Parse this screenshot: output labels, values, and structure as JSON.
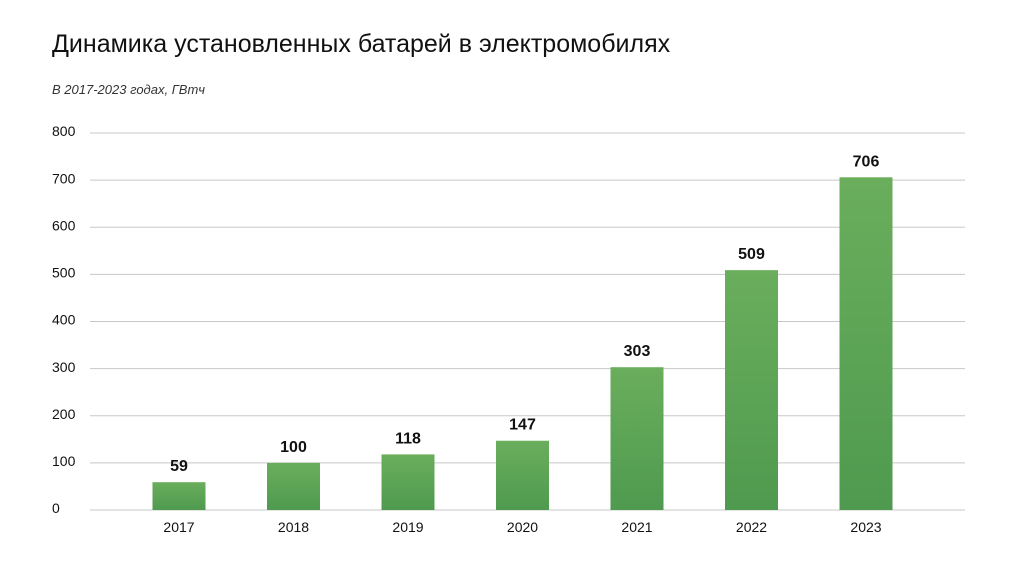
{
  "chart_data": {
    "type": "bar",
    "title": "Динамика установленных батарей в электромобилях",
    "subtitle": "В 2017-2023 годах, ГВтч",
    "categories": [
      "2017",
      "2018",
      "2019",
      "2020",
      "2021",
      "2022",
      "2023"
    ],
    "values": [
      59,
      100,
      118,
      147,
      303,
      509,
      706
    ],
    "ylim": [
      0,
      800
    ],
    "yticks": [
      0,
      100,
      200,
      300,
      400,
      500,
      600,
      700,
      800
    ],
    "grid": true,
    "data_labels": true,
    "colors": {
      "bar_top": "#6aae5c",
      "bar_bottom": "#4f9a4f",
      "grid": "#c8c8c8"
    }
  }
}
